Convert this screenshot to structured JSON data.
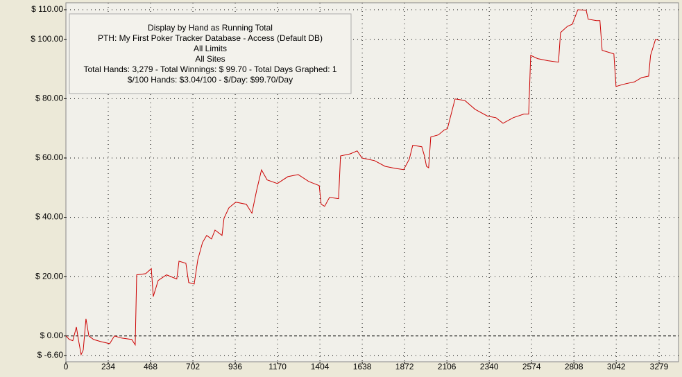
{
  "chart_data": {
    "type": "line",
    "annotations": [
      "Display by Hand as Running Total",
      "PTH: My First Poker Tracker Database - Access (Default DB)",
      "All Limits",
      "All Sites",
      "Total Hands: 3,279 - Total Winnings: $ 99.70 - Total Days Graphed: 1",
      "$/100 Hands: $3.04/100 - $/Day: $99.70/Day"
    ],
    "xlim": [
      0,
      3279
    ],
    "xticks": [
      0,
      234,
      468,
      702,
      936,
      1170,
      1404,
      1638,
      1872,
      2106,
      2340,
      2574,
      2808,
      3042,
      3279
    ],
    "ylim": [
      -6.6,
      110
    ],
    "yticks": [
      {
        "value": -6.6,
        "label": "$ -6.60"
      },
      {
        "value": 0,
        "label": "$ 0.00"
      },
      {
        "value": 20,
        "label": "$ 20.00"
      },
      {
        "value": 40,
        "label": "$ 40.00"
      },
      {
        "value": 60,
        "label": "$ 60.00"
      },
      {
        "value": 80,
        "label": "$ 80.00"
      },
      {
        "value": 100,
        "label": "$ 100.00"
      },
      {
        "value": 110,
        "label": "$ 110.00"
      }
    ],
    "grid": true,
    "series": [
      {
        "color": "#cc0000",
        "x": [
          0,
          19,
          38,
          58,
          69,
          84,
          96,
          111,
          127,
          153,
          192,
          242,
          268,
          307,
          364,
          383,
          391,
          441,
          472,
          483,
          510,
          556,
          613,
          625,
          663,
          679,
          709,
          729,
          755,
          778,
          805,
          824,
          863,
          874,
          901,
          939,
          997,
          1028,
          1054,
          1081,
          1112,
          1169,
          1227,
          1284,
          1342,
          1400,
          1411,
          1430,
          1457,
          1507,
          1518,
          1572,
          1610,
          1637,
          1706,
          1764,
          1821,
          1867,
          1898,
          1917,
          1967,
          1982,
          1993,
          2005,
          2017,
          2059,
          2090,
          2109,
          2151,
          2205,
          2262,
          2331,
          2377,
          2416,
          2473,
          2531,
          2558,
          2569,
          2608,
          2665,
          2723,
          2734,
          2772,
          2799,
          2830,
          2876,
          2887,
          2933,
          2952,
          2964,
          3029,
          3041,
          3079,
          3144,
          3182,
          3221,
          3232,
          3259,
          3279
        ],
        "values": [
          0,
          -1.2,
          -1.6,
          3,
          -1.2,
          -6.3,
          -4.7,
          5.8,
          0,
          -1.2,
          -1.9,
          -2.6,
          0,
          -0.7,
          -1.2,
          -3,
          20.6,
          21,
          22.7,
          13.3,
          18.7,
          20.6,
          19.2,
          25.2,
          24.5,
          18,
          17.5,
          25.7,
          31.5,
          33.9,
          32.7,
          35.7,
          33.9,
          39.7,
          43.2,
          45.1,
          44.4,
          41.4,
          49,
          56,
          52.6,
          51.4,
          53.7,
          54.4,
          52.1,
          50.7,
          44.4,
          43.7,
          46.7,
          46.3,
          60.7,
          61.4,
          62.4,
          60,
          59.1,
          57.2,
          56.5,
          56.1,
          59.6,
          64.3,
          63.8,
          60.7,
          57.2,
          56.7,
          67.1,
          67.8,
          69.4,
          69.9,
          79.9,
          79.4,
          76.4,
          74.1,
          73.6,
          71.7,
          73.6,
          74.8,
          74.8,
          94.6,
          93.5,
          92.8,
          92.3,
          102.3,
          104.4,
          105.1,
          110,
          109.8,
          106.8,
          106.3,
          106.3,
          96.3,
          95.1,
          84.1,
          84.8,
          85.7,
          87.1,
          87.6,
          94.6,
          100,
          99.7
        ]
      }
    ]
  }
}
